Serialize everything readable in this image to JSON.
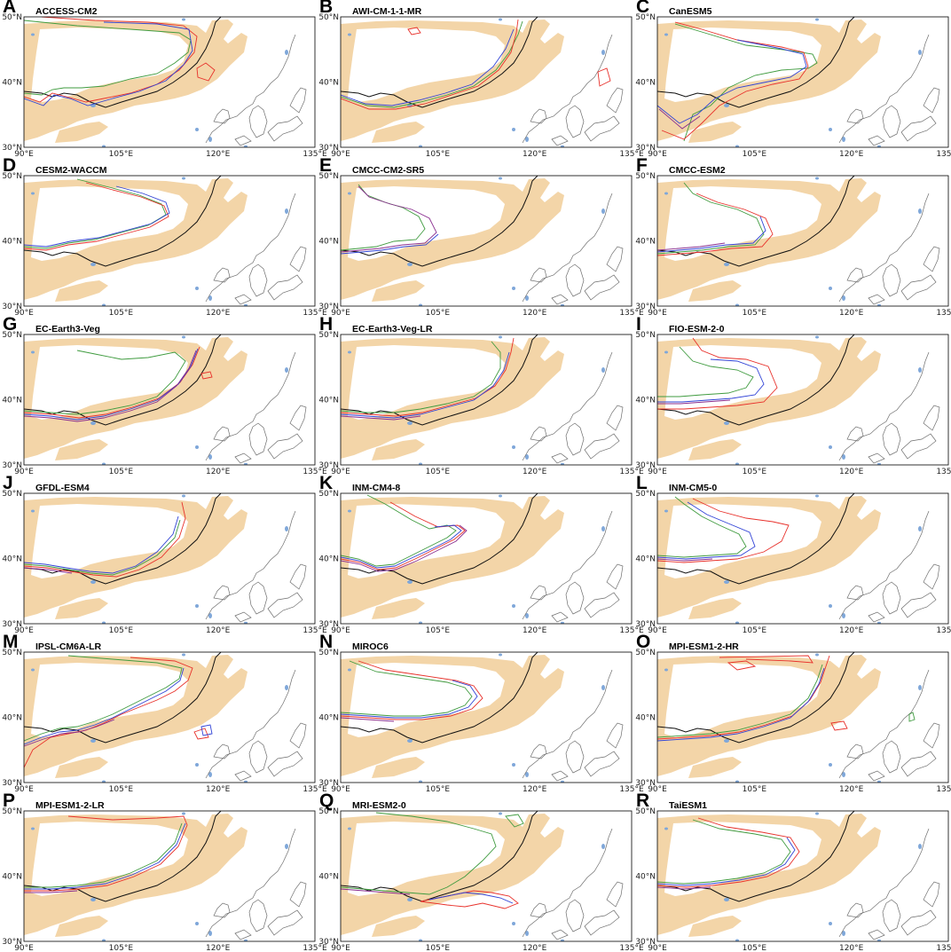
{
  "figure": {
    "x_ticks": [
      "90°E",
      "105°E",
      "120°E",
      "135°E"
    ],
    "y_ticks": [
      "50°N",
      "40°N",
      "30°N"
    ],
    "colors": {
      "shading": "#f3d5a8",
      "lakes": "#7fa7d9",
      "coast": "#6e6e6e",
      "observed_line": "#111111",
      "line_red": "#e8312b",
      "line_blue": "#3143d6",
      "line_green": "#3f9b3f",
      "line_purple": "#8a2e8f"
    }
  },
  "panels": [
    {
      "letter": "A",
      "model": "ACCESS-CM2"
    },
    {
      "letter": "B",
      "model": "AWI-CM-1-1-MR"
    },
    {
      "letter": "C",
      "model": "CanESM5"
    },
    {
      "letter": "D",
      "model": "CESM2-WACCM"
    },
    {
      "letter": "E",
      "model": "CMCC-CM2-SR5"
    },
    {
      "letter": "F",
      "model": "CMCC-ESM2"
    },
    {
      "letter": "G",
      "model": "EC-Earth3-Veg"
    },
    {
      "letter": "H",
      "model": "EC-Earth3-Veg-LR"
    },
    {
      "letter": "I",
      "model": "FIO-ESM-2-0"
    },
    {
      "letter": "J",
      "model": "GFDL-ESM4"
    },
    {
      "letter": "K",
      "model": "INM-CM4-8"
    },
    {
      "letter": "L",
      "model": "INM-CM5-0"
    },
    {
      "letter": "M",
      "model": "IPSL-CM6A-LR"
    },
    {
      "letter": "N",
      "model": "MIROC6"
    },
    {
      "letter": "O",
      "model": "MPI-ESM1-2-HR"
    },
    {
      "letter": "P",
      "model": "MPI-ESM1-2-LR"
    },
    {
      "letter": "Q",
      "model": "MRI-ESM2-0"
    },
    {
      "letter": "R",
      "model": "TaiESM1"
    }
  ]
}
